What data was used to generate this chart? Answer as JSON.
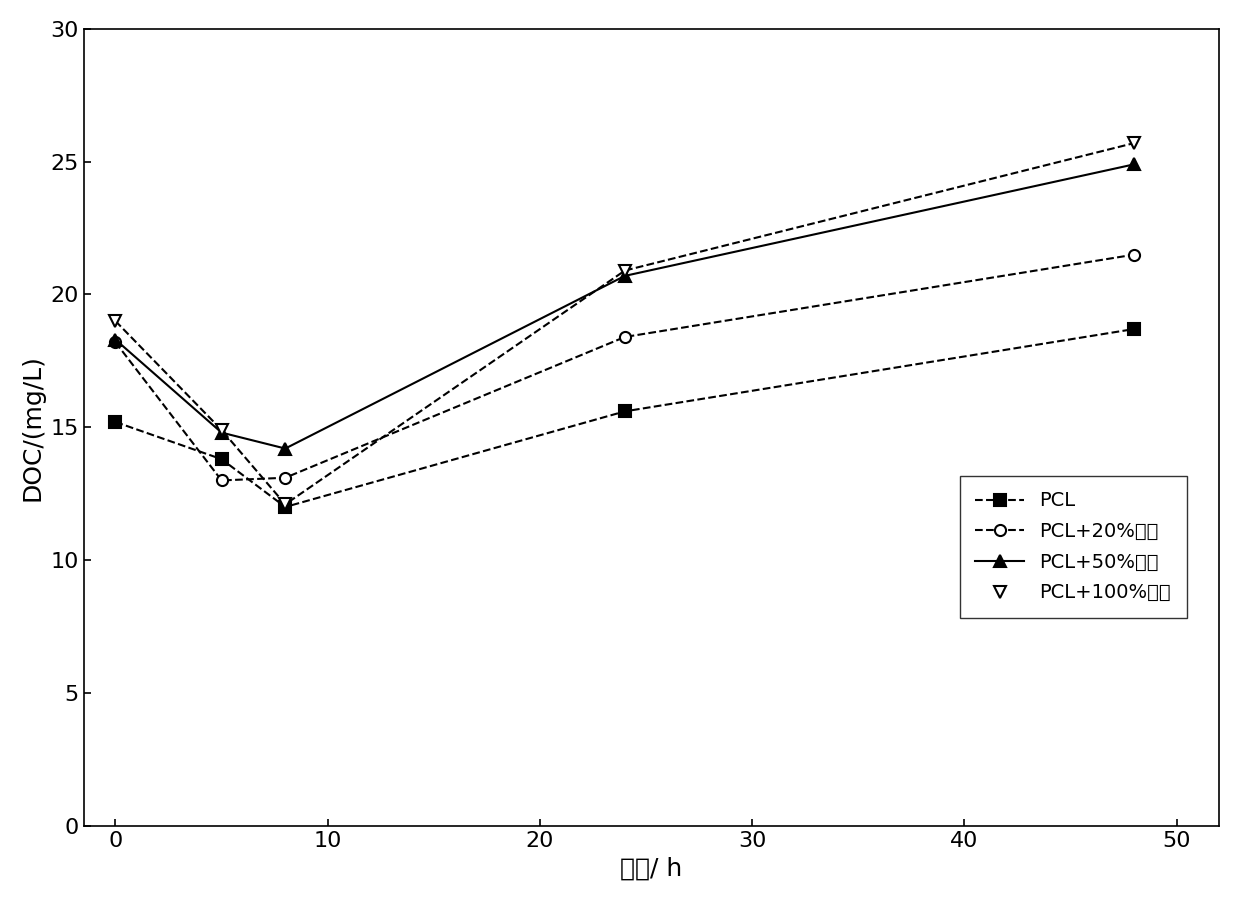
{
  "x": [
    0,
    5,
    8,
    24,
    48
  ],
  "series": [
    {
      "label": "PCL",
      "y": [
        15.2,
        13.8,
        12.0,
        15.6,
        18.7
      ],
      "marker": "s",
      "color": "#000000",
      "linestyle": "--",
      "markersize": 8,
      "markerfacecolor": "#000000"
    },
    {
      "label": "PCL+20%陶粒",
      "y": [
        18.2,
        13.0,
        13.1,
        18.4,
        21.5
      ],
      "marker": "o",
      "color": "#000000",
      "linestyle": "--",
      "markersize": 8,
      "markerfacecolor": "#ffffff"
    },
    {
      "label": "PCL+50%陶粒",
      "y": [
        18.3,
        14.8,
        14.2,
        20.7,
        24.9
      ],
      "marker": "^",
      "color": "#000000",
      "linestyle": "-",
      "markersize": 8,
      "markerfacecolor": "#000000"
    },
    {
      "label": "PCL+100%陶粒",
      "y": [
        19.0,
        14.9,
        12.1,
        20.9,
        25.7
      ],
      "marker": "v",
      "color": "#000000",
      "linestyle": "--",
      "markersize": 8,
      "markerfacecolor": "#ffffff"
    }
  ],
  "xlabel": "时间/ h",
  "ylabel": "DOC/(mg/L)",
  "xlim": [
    -1.5,
    52
  ],
  "ylim": [
    0,
    30
  ],
  "xticks": [
    0,
    10,
    20,
    30,
    40,
    50
  ],
  "yticks": [
    0,
    5,
    10,
    15,
    20,
    25,
    30
  ],
  "label_fontsize": 18,
  "tick_fontsize": 16,
  "legend_fontsize": 14,
  "figure_facecolor": "#ffffff",
  "axes_facecolor": "#ffffff"
}
